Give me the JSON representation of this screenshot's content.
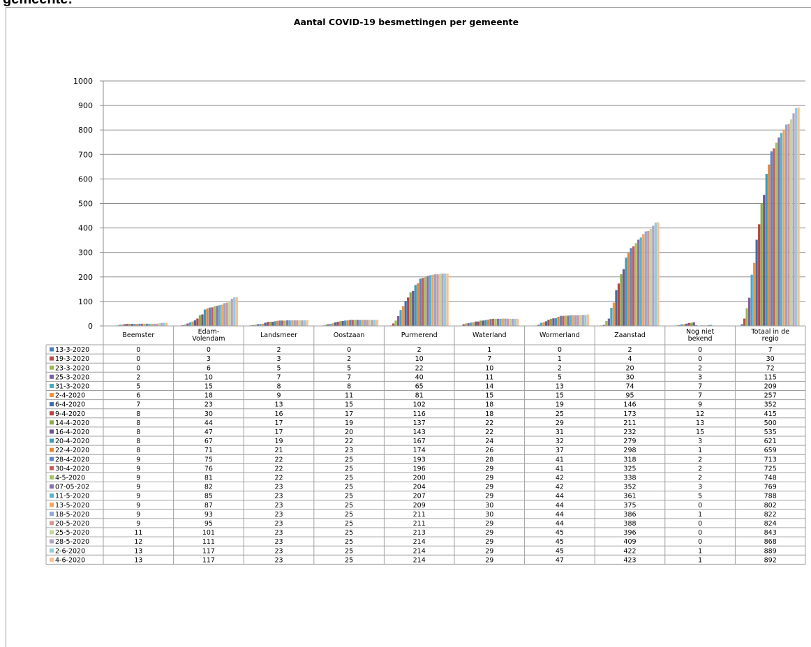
{
  "page": {
    "heading_fragment": "gemeente:"
  },
  "chart_data": {
    "type": "bar",
    "title": "Aantal COVID-19  besmettingen per gemeente",
    "xlabel": "",
    "ylabel": "",
    "ylim": [
      0,
      1000
    ],
    "yticks": [
      0,
      100,
      200,
      300,
      400,
      500,
      600,
      700,
      800,
      900,
      1000
    ],
    "grid": true,
    "legend": "data-table",
    "categories": [
      "Beemster",
      "Edam-\nVolendam",
      "Landsmeer",
      "Oostzaan",
      "Purmerend",
      "Waterland",
      "Wormerland",
      "Zaanstad",
      "Nog niet\nbekend",
      "Totaal in de\nregio"
    ],
    "series": [
      {
        "name": "13-3-2020",
        "color": "#4a7ebb",
        "values": [
          0,
          0,
          2,
          0,
          2,
          1,
          0,
          2,
          0,
          7
        ]
      },
      {
        "name": "19-3-2020",
        "color": "#be4b48",
        "values": [
          0,
          3,
          3,
          2,
          10,
          7,
          1,
          4,
          0,
          30
        ]
      },
      {
        "name": "23-3-2020",
        "color": "#98b954",
        "values": [
          0,
          6,
          5,
          5,
          22,
          10,
          2,
          20,
          2,
          72
        ]
      },
      {
        "name": "25-3-2020",
        "color": "#7d60a0",
        "values": [
          2,
          10,
          7,
          7,
          40,
          11,
          5,
          30,
          3,
          115
        ]
      },
      {
        "name": "31-3-2020",
        "color": "#46aac5",
        "values": [
          5,
          15,
          8,
          8,
          65,
          14,
          13,
          74,
          7,
          209
        ]
      },
      {
        "name": "2-4-2020",
        "color": "#f69240",
        "values": [
          6,
          18,
          9,
          11,
          81,
          15,
          15,
          95,
          7,
          257
        ]
      },
      {
        "name": "6-4-2020",
        "color": "#3f6ba9",
        "values": [
          7,
          23,
          13,
          15,
          102,
          18,
          19,
          146,
          9,
          352
        ]
      },
      {
        "name": "9-4-2020",
        "color": "#b94340",
        "values": [
          8,
          30,
          16,
          17,
          116,
          18,
          25,
          173,
          12,
          415
        ]
      },
      {
        "name": "14-4-2020",
        "color": "#8cac4e",
        "values": [
          8,
          44,
          17,
          19,
          137,
          22,
          29,
          211,
          13,
          500
        ]
      },
      {
        "name": "16-4-2020",
        "color": "#6e5592",
        "values": [
          8,
          47,
          17,
          20,
          143,
          22,
          31,
          232,
          15,
          535
        ]
      },
      {
        "name": "20-4-2020",
        "color": "#3c9cb6",
        "values": [
          8,
          67,
          19,
          22,
          167,
          24,
          32,
          279,
          3,
          621
        ]
      },
      {
        "name": "22-4-2020",
        "color": "#e8853a",
        "values": [
          8,
          71,
          21,
          23,
          174,
          26,
          37,
          298,
          1,
          659
        ]
      },
      {
        "name": "28-4-2020",
        "color": "#5b87c4",
        "values": [
          9,
          75,
          22,
          25,
          193,
          28,
          41,
          318,
          2,
          713
        ]
      },
      {
        "name": "30-4-2020",
        "color": "#c75c59",
        "values": [
          9,
          76,
          22,
          25,
          196,
          29,
          41,
          325,
          2,
          725
        ]
      },
      {
        "name": "4-5-2020",
        "color": "#a3c463",
        "values": [
          9,
          81,
          22,
          25,
          200,
          29,
          42,
          338,
          2,
          748
        ]
      },
      {
        "name": "07-05-202",
        "color": "#8a6faf",
        "values": [
          9,
          82,
          23,
          25,
          204,
          29,
          42,
          352,
          3,
          769
        ]
      },
      {
        "name": "11-5-2020",
        "color": "#56b5ce",
        "values": [
          9,
          85,
          23,
          25,
          207,
          29,
          44,
          361,
          5,
          788
        ]
      },
      {
        "name": "13-5-2020",
        "color": "#f8a258",
        "values": [
          9,
          87,
          23,
          25,
          209,
          30,
          44,
          375,
          0,
          802
        ]
      },
      {
        "name": "18-5-2020",
        "color": "#8ea8d8",
        "values": [
          9,
          93,
          23,
          25,
          211,
          30,
          44,
          386,
          1,
          822
        ]
      },
      {
        "name": "20-5-2020",
        "color": "#d99594",
        "values": [
          9,
          95,
          23,
          25,
          211,
          29,
          44,
          388,
          0,
          824
        ]
      },
      {
        "name": "25-5-2020",
        "color": "#c3d69b",
        "values": [
          11,
          101,
          23,
          25,
          213,
          29,
          45,
          396,
          0,
          843
        ]
      },
      {
        "name": "28-5-2020",
        "color": "#b2a2c7",
        "values": [
          12,
          111,
          23,
          25,
          214,
          29,
          45,
          409,
          0,
          868
        ]
      },
      {
        "name": "2-6-2020",
        "color": "#93cddd",
        "values": [
          13,
          117,
          23,
          25,
          214,
          29,
          45,
          422,
          1,
          889
        ]
      },
      {
        "name": "4-6-2020",
        "color": "#fac090",
        "values": [
          13,
          117,
          23,
          25,
          214,
          29,
          47,
          423,
          1,
          892
        ]
      }
    ]
  }
}
